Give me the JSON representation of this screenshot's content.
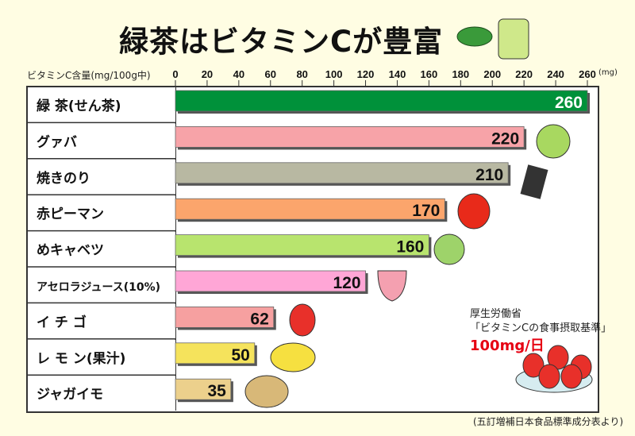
{
  "chart_data": {
    "type": "bar",
    "orientation": "horizontal",
    "title": "緑茶はビタミンCが豊富",
    "xlabel": "ビタミンC含量(mg/100g中)",
    "unit": "(mg)",
    "xlim": [
      0,
      260
    ],
    "ticks": [
      0,
      20,
      40,
      60,
      80,
      100,
      120,
      140,
      160,
      180,
      200,
      220,
      240,
      260
    ],
    "categories": [
      "緑 茶(せん茶)",
      "グァバ",
      "焼きのり",
      "赤ピーマン",
      "めキャベツ",
      "アセロラジュース(10%)",
      "イ チ ゴ",
      "レ モ ン(果汁)",
      "ジャガイモ"
    ],
    "values": [
      260,
      220,
      210,
      170,
      160,
      120,
      62,
      50,
      35
    ],
    "colors": [
      "#00913a",
      "#f7a3a8",
      "#b8b8a2",
      "#fba56c",
      "#b8e46e",
      "#ffa6d6",
      "#f6a0a0",
      "#f5e35c",
      "#ecd08c"
    ],
    "label_colors": [
      "#ffffff",
      "#111111",
      "#111111",
      "#111111",
      "#111111",
      "#111111",
      "#111111",
      "#111111",
      "#111111"
    ],
    "grid": false,
    "legend": "none"
  },
  "note": {
    "line1": "厚生労働省",
    "line2": "「ビタミンCの食事摂取基準」",
    "line3": "100mg/日"
  },
  "source": "(五訂増補日本食品標準成分表より)"
}
